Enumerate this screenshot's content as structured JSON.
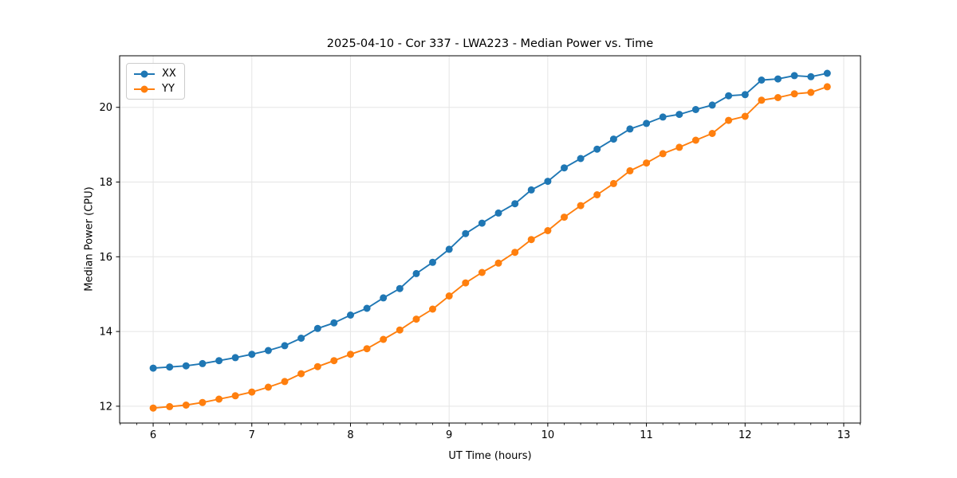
{
  "chart_data": {
    "type": "line",
    "title": "2025-04-10 - Cor 337 - LWA223 - Median Power vs. Time",
    "xlabel": "UT Time (hours)",
    "ylabel": "Median Power (CPU)",
    "xlim": [
      5.66,
      13.17
    ],
    "ylim": [
      11.55,
      21.38
    ],
    "x_ticks": [
      6,
      7,
      8,
      9,
      10,
      11,
      12,
      13
    ],
    "y_ticks": [
      12,
      14,
      16,
      18,
      20
    ],
    "x_minor_step": 0.1666667,
    "grid": true,
    "grid_color": "#e5e5e5",
    "spine_color": "#000000",
    "legend_position": "upper-left",
    "x": [
      6.0,
      6.167,
      6.333,
      6.5,
      6.667,
      6.833,
      7.0,
      7.167,
      7.333,
      7.5,
      7.667,
      7.833,
      8.0,
      8.167,
      8.333,
      8.5,
      8.667,
      8.833,
      9.0,
      9.167,
      9.333,
      9.5,
      9.667,
      9.833,
      10.0,
      10.167,
      10.333,
      10.5,
      10.667,
      10.833,
      11.0,
      11.167,
      11.333,
      11.5,
      11.667,
      11.833,
      12.0,
      12.167,
      12.333,
      12.5,
      12.667,
      12.833
    ],
    "series": [
      {
        "name": "XX",
        "color": "#1f77b4",
        "values": [
          13.02,
          13.05,
          13.08,
          13.14,
          13.22,
          13.3,
          13.39,
          13.49,
          13.62,
          13.82,
          14.08,
          14.23,
          14.44,
          14.62,
          14.9,
          15.15,
          15.55,
          15.85,
          16.2,
          16.62,
          16.9,
          17.17,
          17.42,
          17.79,
          18.02,
          18.38,
          18.63,
          18.88,
          19.15,
          19.42,
          19.57,
          19.74,
          19.81,
          19.94,
          20.06,
          20.31,
          20.34,
          20.73,
          20.76,
          20.85,
          20.82,
          20.91
        ]
      },
      {
        "name": "YY",
        "color": "#ff7f0e",
        "values": [
          11.95,
          11.99,
          12.03,
          12.1,
          12.19,
          12.28,
          12.38,
          12.51,
          12.66,
          12.87,
          13.06,
          13.22,
          13.39,
          13.54,
          13.79,
          14.04,
          14.33,
          14.6,
          14.95,
          15.3,
          15.58,
          15.83,
          16.12,
          16.46,
          16.7,
          17.06,
          17.37,
          17.66,
          17.96,
          18.3,
          18.51,
          18.76,
          18.93,
          19.12,
          19.3,
          19.65,
          19.76,
          20.19,
          20.26,
          20.36,
          20.4,
          20.55
        ]
      }
    ]
  }
}
